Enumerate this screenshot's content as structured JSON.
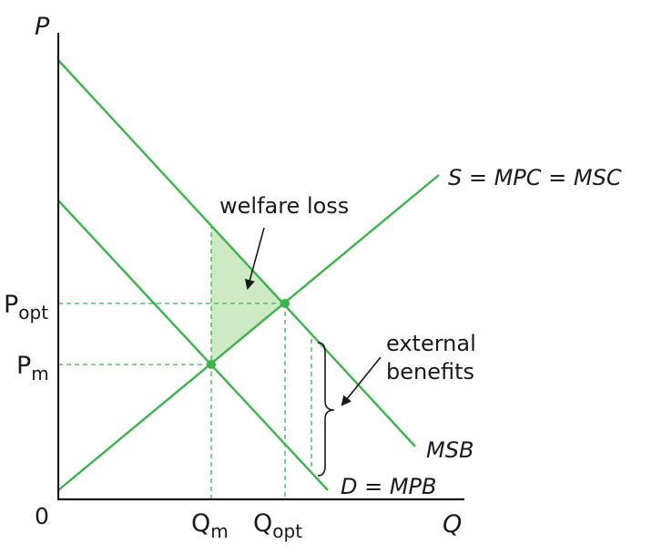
{
  "axes": {
    "y_label": "P",
    "x_label": "Q",
    "origin_label": "0"
  },
  "labels": {
    "p_opt": {
      "main": "P",
      "sub": "opt"
    },
    "p_m": {
      "main": "P",
      "sub": "m"
    },
    "q_m": {
      "main": "Q",
      "sub": "m"
    },
    "q_opt": {
      "main": "Q",
      "sub": "opt"
    }
  },
  "curves": {
    "supply": "S = MPC = MSC",
    "msb": "MSB",
    "demand": "D = MPB"
  },
  "annotations": {
    "welfare_loss": "welfare loss",
    "external_line1": "external",
    "external_line2": "benefits"
  },
  "colors": {
    "curve": "#3cb44b",
    "shade": "#cdeac5",
    "axis": "#1a1a1a"
  }
}
